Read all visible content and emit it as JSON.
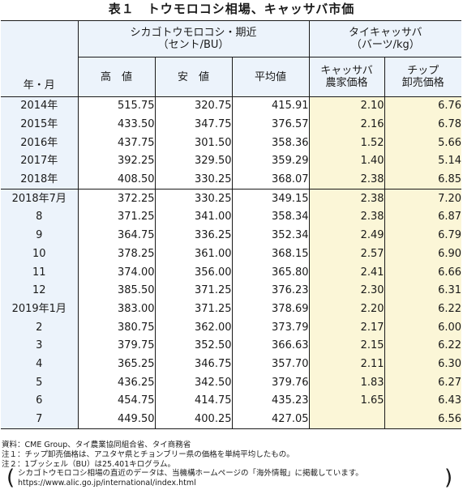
{
  "title": "表１　トウモロコシ相場、キャッサバ市価",
  "headers": {
    "group1": "シカゴトウモロコシ・期近\n（セント/BU）",
    "group2": "タイキャッサバ\n（バーツ/kg）",
    "row_label": "年・月",
    "high": "高　値",
    "low": "安　値",
    "avg": "平均値",
    "cassava_farm": "キャッサバ\n農家価格",
    "chip": "チップ\n卸売価格"
  },
  "annual_rows": [
    {
      "label": "2014年",
      "high": "515.75",
      "low": "320.75",
      "avg": "415.91",
      "farm": "2.10",
      "chip": "6.76"
    },
    {
      "label": "2015年",
      "high": "433.50",
      "low": "347.75",
      "avg": "376.57",
      "farm": "2.16",
      "chip": "6.78"
    },
    {
      "label": "2016年",
      "high": "437.75",
      "low": "301.50",
      "avg": "358.36",
      "farm": "1.52",
      "chip": "5.66"
    },
    {
      "label": "2017年",
      "high": "392.25",
      "low": "329.50",
      "avg": "359.29",
      "farm": "1.40",
      "chip": "5.14"
    },
    {
      "label": "2018年",
      "high": "408.50",
      "low": "330.25",
      "avg": "368.07",
      "farm": "2.38",
      "chip": "6.85"
    }
  ],
  "monthly_rows": [
    {
      "label": "2018年7月",
      "high": "372.25",
      "low": "330.25",
      "avg": "349.15",
      "farm": "2.38",
      "chip": "7.20"
    },
    {
      "label": "8",
      "high": "371.25",
      "low": "341.00",
      "avg": "358.34",
      "farm": "2.38",
      "chip": "6.87"
    },
    {
      "label": "9",
      "high": "364.75",
      "low": "336.25",
      "avg": "352.34",
      "farm": "2.49",
      "chip": "6.79"
    },
    {
      "label": "10",
      "high": "378.25",
      "low": "361.00",
      "avg": "368.15",
      "farm": "2.57",
      "chip": "6.90"
    },
    {
      "label": "11",
      "high": "374.00",
      "low": "356.00",
      "avg": "365.80",
      "farm": "2.41",
      "chip": "6.66"
    },
    {
      "label": "12",
      "high": "385.50",
      "low": "371.25",
      "avg": "376.23",
      "farm": "2.30",
      "chip": "6.31"
    },
    {
      "label": "2019年1月",
      "high": "383.00",
      "low": "371.25",
      "avg": "378.69",
      "farm": "2.20",
      "chip": "6.22"
    },
    {
      "label": "2",
      "high": "380.75",
      "low": "362.00",
      "avg": "373.79",
      "farm": "2.17",
      "chip": "6.00"
    },
    {
      "label": "3",
      "high": "379.75",
      "low": "352.50",
      "avg": "366.63",
      "farm": "2.15",
      "chip": "6.22"
    },
    {
      "label": "4",
      "high": "365.25",
      "low": "346.75",
      "avg": "357.70",
      "farm": "2.11",
      "chip": "6.30"
    },
    {
      "label": "5",
      "high": "436.25",
      "low": "342.50",
      "avg": "379.76",
      "farm": "1.83",
      "chip": "6.27"
    },
    {
      "label": "6",
      "high": "454.75",
      "low": "414.75",
      "avg": "435.23",
      "farm": "1.65",
      "chip": "6.43"
    },
    {
      "label": "7",
      "high": "449.50",
      "low": "400.25",
      "avg": "427.05",
      "farm": "",
      "chip": "6.56"
    }
  ],
  "notes": {
    "source": "資料：CME Group、タイ農業協同組合省、タイ商務省",
    "note1": "注１：チップ卸売価格は、アユタヤ県とチョンブリー県の価格を単純平均したもの。",
    "note2": "注２：1ブッシェル（BU）は25.401キログラム。",
    "box_line1": "シカゴトウモロコシ相場の直近のデータは、当機構ホームページの「海外情報」に掲載しています。",
    "box_line2": "https://www.alic.go.jp/international/index.html"
  }
}
